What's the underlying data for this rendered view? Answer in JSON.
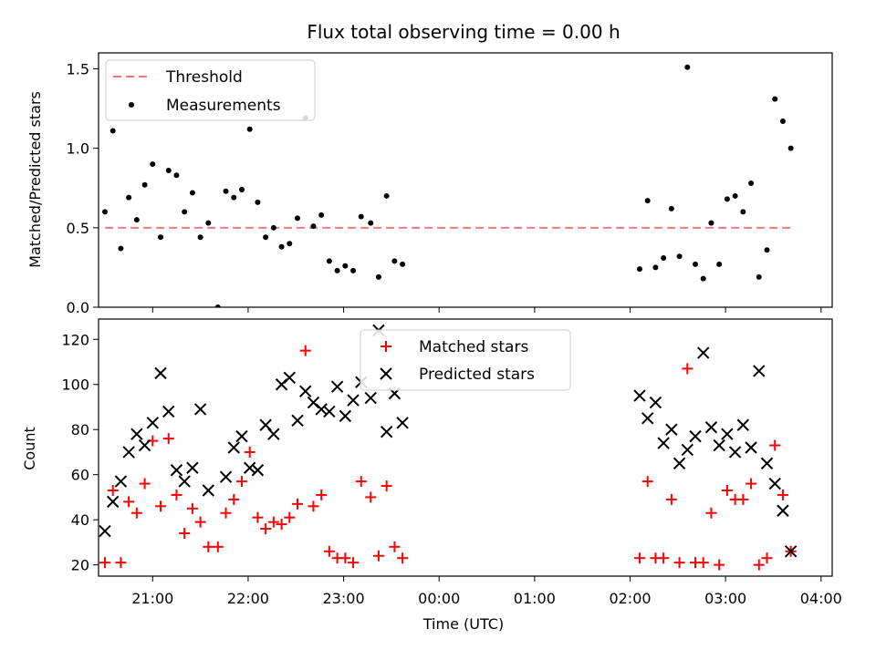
{
  "chart_data": [
    {
      "type": "scatter",
      "title": "Flux total observing time = 0.00 h",
      "xlabel": "",
      "ylabel": "Matched/Predicted stars",
      "xlim": [
        "20:26",
        "04:07"
      ],
      "ylim": [
        0,
        1.6
      ],
      "yticks": [
        "0.0",
        "0.5",
        "1.0",
        "1.5"
      ],
      "legend": {
        "position": "top-left",
        "entries": [
          "Threshold",
          "Measurements"
        ]
      },
      "colors": {
        "threshold": "#ff7777",
        "measurements": "#000000"
      },
      "threshold": {
        "name": "Threshold",
        "value": 0.5,
        "x_start": "20:30",
        "x_end": "03:42"
      },
      "series": [
        {
          "name": "Measurements",
          "points": [
            [
              "20:30",
              0.6
            ],
            [
              "20:35",
              1.11
            ],
            [
              "20:40",
              0.37
            ],
            [
              "20:45",
              0.69
            ],
            [
              "20:50",
              0.55
            ],
            [
              "20:55",
              0.77
            ],
            [
              "21:00",
              0.9
            ],
            [
              "21:05",
              0.44
            ],
            [
              "21:10",
              0.86
            ],
            [
              "21:15",
              0.83
            ],
            [
              "21:20",
              0.6
            ],
            [
              "21:25",
              0.72
            ],
            [
              "21:30",
              0.44
            ],
            [
              "21:35",
              0.53
            ],
            [
              "21:41",
              0.0
            ],
            [
              "21:46",
              0.73
            ],
            [
              "21:51",
              0.69
            ],
            [
              "21:56",
              0.74
            ],
            [
              "22:01",
              1.12
            ],
            [
              "22:06",
              0.66
            ],
            [
              "22:11",
              0.44
            ],
            [
              "22:16",
              0.5
            ],
            [
              "22:21",
              0.38
            ],
            [
              "22:26",
              0.4
            ],
            [
              "22:31",
              0.56
            ],
            [
              "22:36",
              1.19
            ],
            [
              "22:41",
              0.51
            ],
            [
              "22:46",
              0.58
            ],
            [
              "22:51",
              0.29
            ],
            [
              "22:56",
              0.23
            ],
            [
              "23:01",
              0.26
            ],
            [
              "23:06",
              0.23
            ],
            [
              "23:11",
              0.57
            ],
            [
              "23:17",
              0.53
            ],
            [
              "23:22",
              0.19
            ],
            [
              "23:27",
              0.7
            ],
            [
              "23:32",
              0.29
            ],
            [
              "23:37",
              0.27
            ],
            [
              "02:06",
              0.24
            ],
            [
              "02:11",
              0.67
            ],
            [
              "02:16",
              0.25
            ],
            [
              "02:21",
              0.31
            ],
            [
              "02:26",
              0.62
            ],
            [
              "02:31",
              0.32
            ],
            [
              "02:36",
              1.51
            ],
            [
              "02:41",
              0.27
            ],
            [
              "02:46",
              0.18
            ],
            [
              "02:51",
              0.53
            ],
            [
              "02:56",
              0.27
            ],
            [
              "03:01",
              0.68
            ],
            [
              "03:06",
              0.7
            ],
            [
              "03:11",
              0.6
            ],
            [
              "03:16",
              0.78
            ],
            [
              "03:21",
              0.19
            ],
            [
              "03:26",
              0.36
            ],
            [
              "03:31",
              1.31
            ],
            [
              "03:36",
              1.17
            ],
            [
              "03:41",
              1.0
            ]
          ]
        }
      ]
    },
    {
      "type": "scatter",
      "title": "",
      "xlabel": "Time (UTC)",
      "ylabel": "Count",
      "xlim": [
        "20:26",
        "04:07"
      ],
      "ylim": [
        15,
        129
      ],
      "xticks": [
        "21:00",
        "22:00",
        "23:00",
        "00:00",
        "01:00",
        "02:00",
        "03:00",
        "04:00"
      ],
      "yticks": [
        "20",
        "40",
        "60",
        "80",
        "100",
        "120"
      ],
      "legend": {
        "position": "upper center",
        "entries": [
          "Matched stars",
          "Predicted stars"
        ]
      },
      "colors": {
        "matched": "#ff0000",
        "predicted": "#000000"
      },
      "series": [
        {
          "name": "Matched stars",
          "marker": "plus",
          "points": [
            [
              "20:30",
              21
            ],
            [
              "20:35",
              53
            ],
            [
              "20:40",
              21
            ],
            [
              "20:45",
              48
            ],
            [
              "20:50",
              43
            ],
            [
              "20:55",
              56
            ],
            [
              "21:00",
              75
            ],
            [
              "21:05",
              46
            ],
            [
              "21:10",
              76
            ],
            [
              "21:15",
              51
            ],
            [
              "21:20",
              34
            ],
            [
              "21:25",
              45
            ],
            [
              "21:30",
              39
            ],
            [
              "21:35",
              28
            ],
            [
              "21:41",
              28
            ],
            [
              "21:46",
              43
            ],
            [
              "21:51",
              49
            ],
            [
              "21:56",
              57
            ],
            [
              "22:01",
              70
            ],
            [
              "22:06",
              41
            ],
            [
              "22:11",
              36
            ],
            [
              "22:16",
              39
            ],
            [
              "22:21",
              38
            ],
            [
              "22:26",
              41
            ],
            [
              "22:31",
              47
            ],
            [
              "22:36",
              115
            ],
            [
              "22:41",
              46
            ],
            [
              "22:46",
              51
            ],
            [
              "22:51",
              26
            ],
            [
              "22:56",
              23
            ],
            [
              "23:01",
              23
            ],
            [
              "23:06",
              21
            ],
            [
              "23:11",
              57
            ],
            [
              "23:17",
              50
            ],
            [
              "23:22",
              24
            ],
            [
              "23:27",
              55
            ],
            [
              "23:32",
              28
            ],
            [
              "23:37",
              23
            ],
            [
              "02:06",
              23
            ],
            [
              "02:11",
              57
            ],
            [
              "02:16",
              23
            ],
            [
              "02:21",
              23
            ],
            [
              "02:26",
              49
            ],
            [
              "02:31",
              21
            ],
            [
              "02:36",
              107
            ],
            [
              "02:41",
              21
            ],
            [
              "02:46",
              21
            ],
            [
              "02:51",
              43
            ],
            [
              "02:56",
              20
            ],
            [
              "03:01",
              53
            ],
            [
              "03:06",
              49
            ],
            [
              "03:11",
              49
            ],
            [
              "03:16",
              56
            ],
            [
              "03:21",
              20
            ],
            [
              "03:26",
              23
            ],
            [
              "03:31",
              73
            ],
            [
              "03:36",
              51
            ],
            [
              "03:41",
              26
            ]
          ]
        },
        {
          "name": "Predicted stars",
          "marker": "x",
          "points": [
            [
              "20:30",
              35
            ],
            [
              "20:35",
              48
            ],
            [
              "20:40",
              57
            ],
            [
              "20:45",
              70
            ],
            [
              "20:50",
              78
            ],
            [
              "20:55",
              73
            ],
            [
              "21:00",
              83
            ],
            [
              "21:05",
              105
            ],
            [
              "21:10",
              88
            ],
            [
              "21:15",
              62
            ],
            [
              "21:20",
              57
            ],
            [
              "21:25",
              63
            ],
            [
              "21:30",
              89
            ],
            [
              "21:35",
              53
            ],
            [
              "21:46",
              59
            ],
            [
              "21:51",
              72
            ],
            [
              "21:56",
              77
            ],
            [
              "22:01",
              63
            ],
            [
              "22:06",
              62
            ],
            [
              "22:11",
              82
            ],
            [
              "22:16",
              78
            ],
            [
              "22:21",
              100
            ],
            [
              "22:26",
              103
            ],
            [
              "22:31",
              84
            ],
            [
              "22:36",
              97
            ],
            [
              "22:41",
              92
            ],
            [
              "22:46",
              89
            ],
            [
              "22:51",
              88
            ],
            [
              "22:56",
              99
            ],
            [
              "23:01",
              86
            ],
            [
              "23:06",
              93
            ],
            [
              "23:11",
              101
            ],
            [
              "23:17",
              94
            ],
            [
              "23:22",
              124
            ],
            [
              "23:27",
              79
            ],
            [
              "23:32",
              96
            ],
            [
              "23:37",
              83
            ],
            [
              "02:06",
              95
            ],
            [
              "02:11",
              85
            ],
            [
              "02:16",
              92
            ],
            [
              "02:21",
              74
            ],
            [
              "02:26",
              80
            ],
            [
              "02:31",
              65
            ],
            [
              "02:36",
              71
            ],
            [
              "02:41",
              77
            ],
            [
              "02:46",
              114
            ],
            [
              "02:51",
              81
            ],
            [
              "02:56",
              73
            ],
            [
              "03:01",
              78
            ],
            [
              "03:06",
              70
            ],
            [
              "03:11",
              82
            ],
            [
              "03:16",
              72
            ],
            [
              "03:21",
              106
            ],
            [
              "03:26",
              65
            ],
            [
              "03:31",
              56
            ],
            [
              "03:36",
              44
            ],
            [
              "03:41",
              26
            ]
          ]
        }
      ]
    }
  ]
}
